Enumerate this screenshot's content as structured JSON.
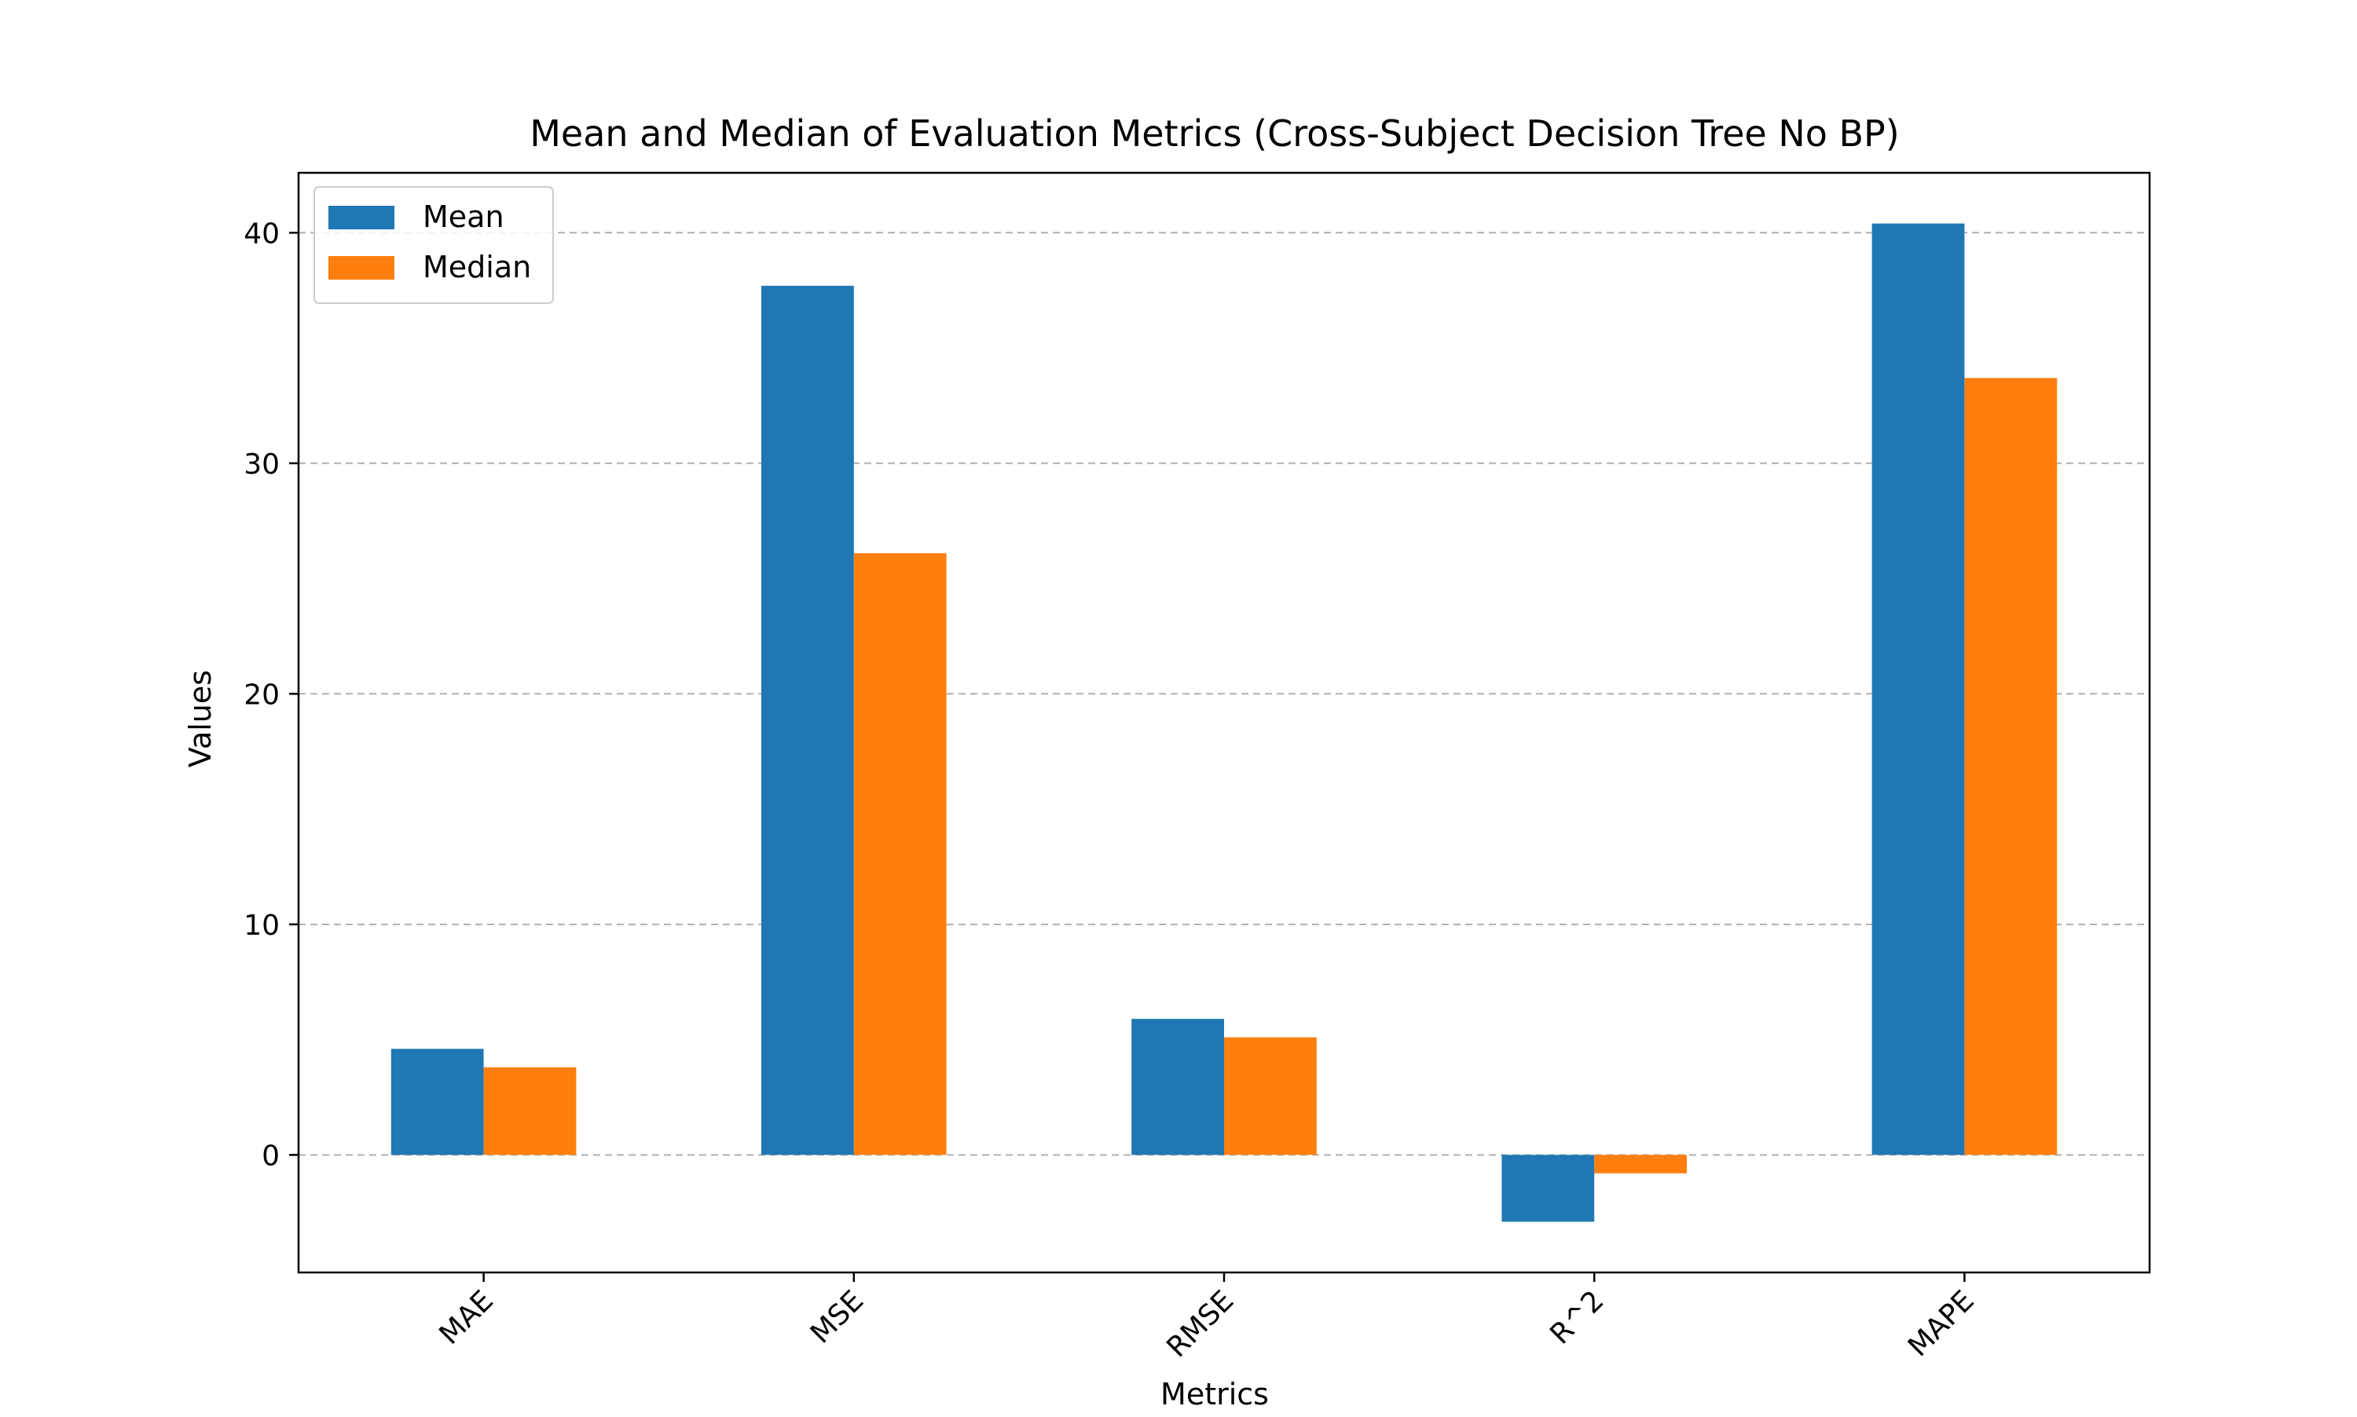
{
  "chart_data": {
    "type": "bar",
    "title": "Mean and Median of Evaluation Metrics (Cross-Subject Decision Tree No BP)",
    "xlabel": "Metrics",
    "ylabel": "Values",
    "categories": [
      "MAE",
      "MSE",
      "RMSE",
      "R^2",
      "MAPE"
    ],
    "series": [
      {
        "name": "Mean",
        "color": "#1f77b4",
        "values": [
          4.6,
          37.7,
          5.9,
          -2.9,
          40.4
        ]
      },
      {
        "name": "Median",
        "color": "#ff7f0e",
        "values": [
          3.8,
          26.1,
          5.1,
          -0.8,
          33.7
        ]
      }
    ],
    "yticks": [
      0,
      10,
      20,
      30,
      40
    ],
    "ylim": [
      -5.1,
      42.6
    ],
    "grid": "y-dashed",
    "legend_position": "top-left"
  }
}
